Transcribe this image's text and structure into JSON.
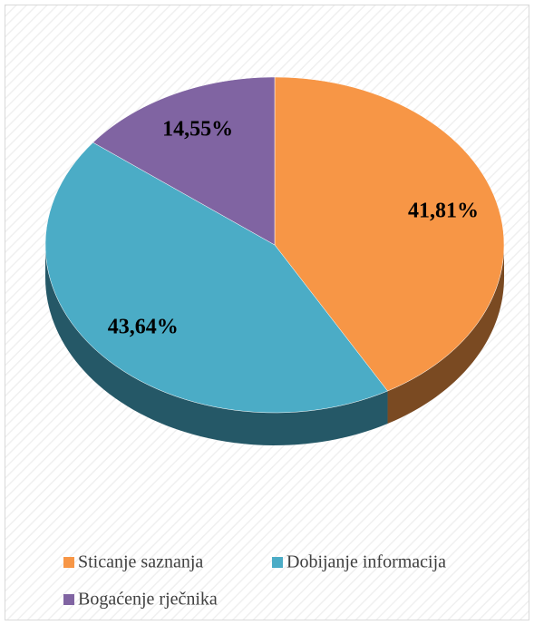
{
  "chart_data": {
    "type": "pie",
    "categories": [
      "Sticanje saznanja",
      "Dobijanje informacija",
      "Bogaćenje rječnika"
    ],
    "values": [
      41.81,
      43.64,
      14.55
    ],
    "value_labels": [
      "41,81%",
      "43,64%",
      "14,55%"
    ],
    "colors": [
      "#f79646",
      "#4bacc6",
      "#8064a2"
    ],
    "side_colors": [
      "#7a4a22",
      "#255867",
      "#403152"
    ],
    "legend": "bottom"
  }
}
